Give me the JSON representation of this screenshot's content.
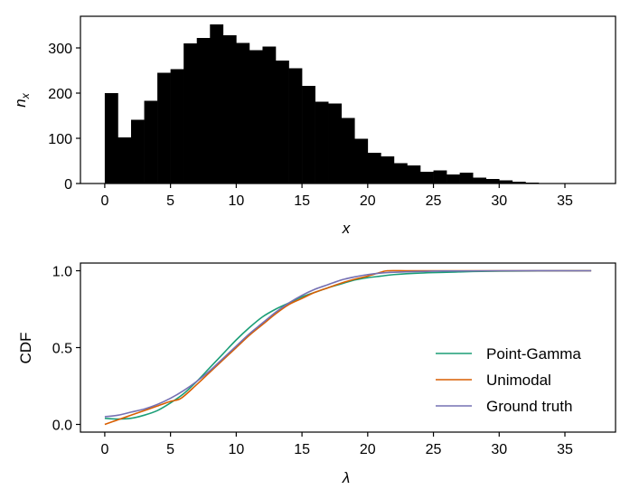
{
  "chart_data": [
    {
      "type": "bar",
      "xlabel": "x",
      "ylabel_base": "n",
      "ylabel_sub": "x",
      "xlim": [
        -1.85,
        38.85
      ],
      "ylim": [
        0,
        370
      ],
      "xticks": [
        0,
        5,
        10,
        15,
        20,
        25,
        30,
        35
      ],
      "yticks": [
        0,
        100,
        200,
        300
      ],
      "bin_width": 1,
      "bin_starts": [
        0,
        1,
        2,
        3,
        4,
        5,
        6,
        7,
        8,
        9,
        10,
        11,
        12,
        13,
        14,
        15,
        16,
        17,
        18,
        19,
        20,
        21,
        22,
        23,
        24,
        25,
        26,
        27,
        28,
        29,
        30,
        31,
        32,
        33,
        34,
        35,
        36
      ],
      "values": [
        200,
        102,
        141,
        183,
        245,
        253,
        310,
        322,
        352,
        328,
        311,
        295,
        303,
        272,
        255,
        216,
        181,
        177,
        145,
        99,
        68,
        60,
        45,
        40,
        26,
        29,
        20,
        24,
        13,
        10,
        7,
        4,
        2,
        1,
        1,
        1,
        1
      ],
      "bar_color": "#000000"
    },
    {
      "type": "line",
      "xlabel": "λ",
      "ylabel": "CDF",
      "xlim": [
        -1.85,
        38.85
      ],
      "ylim": [
        -0.05,
        1.05
      ],
      "xticks": [
        0,
        5,
        10,
        15,
        20,
        25,
        30,
        35
      ],
      "yticks": [
        0.0,
        0.5,
        1.0
      ],
      "ytick_labels": [
        "0.0",
        "0.5",
        "1.0"
      ],
      "legend_position": "lower-right",
      "series": [
        {
          "name": "Point-Gamma",
          "color": "#1b9e77",
          "x": [
            0,
            1,
            2,
            3,
            4,
            5,
            6,
            7,
            8,
            9,
            10,
            11,
            12,
            13,
            14,
            15,
            16,
            17,
            18,
            19,
            20,
            21,
            22,
            24,
            26,
            28,
            30,
            33,
            37
          ],
          "y": [
            0.04,
            0.035,
            0.04,
            0.06,
            0.09,
            0.14,
            0.2,
            0.28,
            0.37,
            0.46,
            0.55,
            0.63,
            0.7,
            0.75,
            0.79,
            0.83,
            0.86,
            0.89,
            0.915,
            0.94,
            0.955,
            0.965,
            0.975,
            0.985,
            0.99,
            0.995,
            0.997,
            0.999,
            1.0
          ]
        },
        {
          "name": "Unimodal",
          "color": "#d95f02",
          "x": [
            0,
            1,
            2,
            3,
            4,
            5,
            5.8,
            7,
            8,
            9,
            10,
            11,
            12,
            13,
            14,
            15,
            16,
            17,
            18,
            19,
            20,
            21,
            21.5,
            23,
            25,
            30,
            37
          ],
          "y": [
            0.0,
            0.03,
            0.06,
            0.09,
            0.12,
            0.15,
            0.17,
            0.26,
            0.34,
            0.42,
            0.5,
            0.58,
            0.65,
            0.72,
            0.78,
            0.82,
            0.86,
            0.89,
            0.92,
            0.945,
            0.965,
            0.99,
            1.0,
            1.0,
            1.0,
            1.0,
            1.0
          ]
        },
        {
          "name": "Ground truth",
          "color": "#7570b3",
          "x": [
            0,
            1,
            2,
            3,
            4,
            5,
            6,
            7,
            8,
            9,
            10,
            11,
            12,
            13,
            14,
            15,
            16,
            17,
            18,
            19,
            20,
            21,
            22,
            24,
            26,
            30,
            37
          ],
          "y": [
            0.05,
            0.06,
            0.08,
            0.1,
            0.13,
            0.17,
            0.22,
            0.28,
            0.35,
            0.43,
            0.51,
            0.59,
            0.66,
            0.73,
            0.79,
            0.84,
            0.88,
            0.91,
            0.94,
            0.96,
            0.975,
            0.985,
            0.99,
            0.995,
            0.998,
            1.0,
            1.0
          ]
        }
      ]
    }
  ]
}
